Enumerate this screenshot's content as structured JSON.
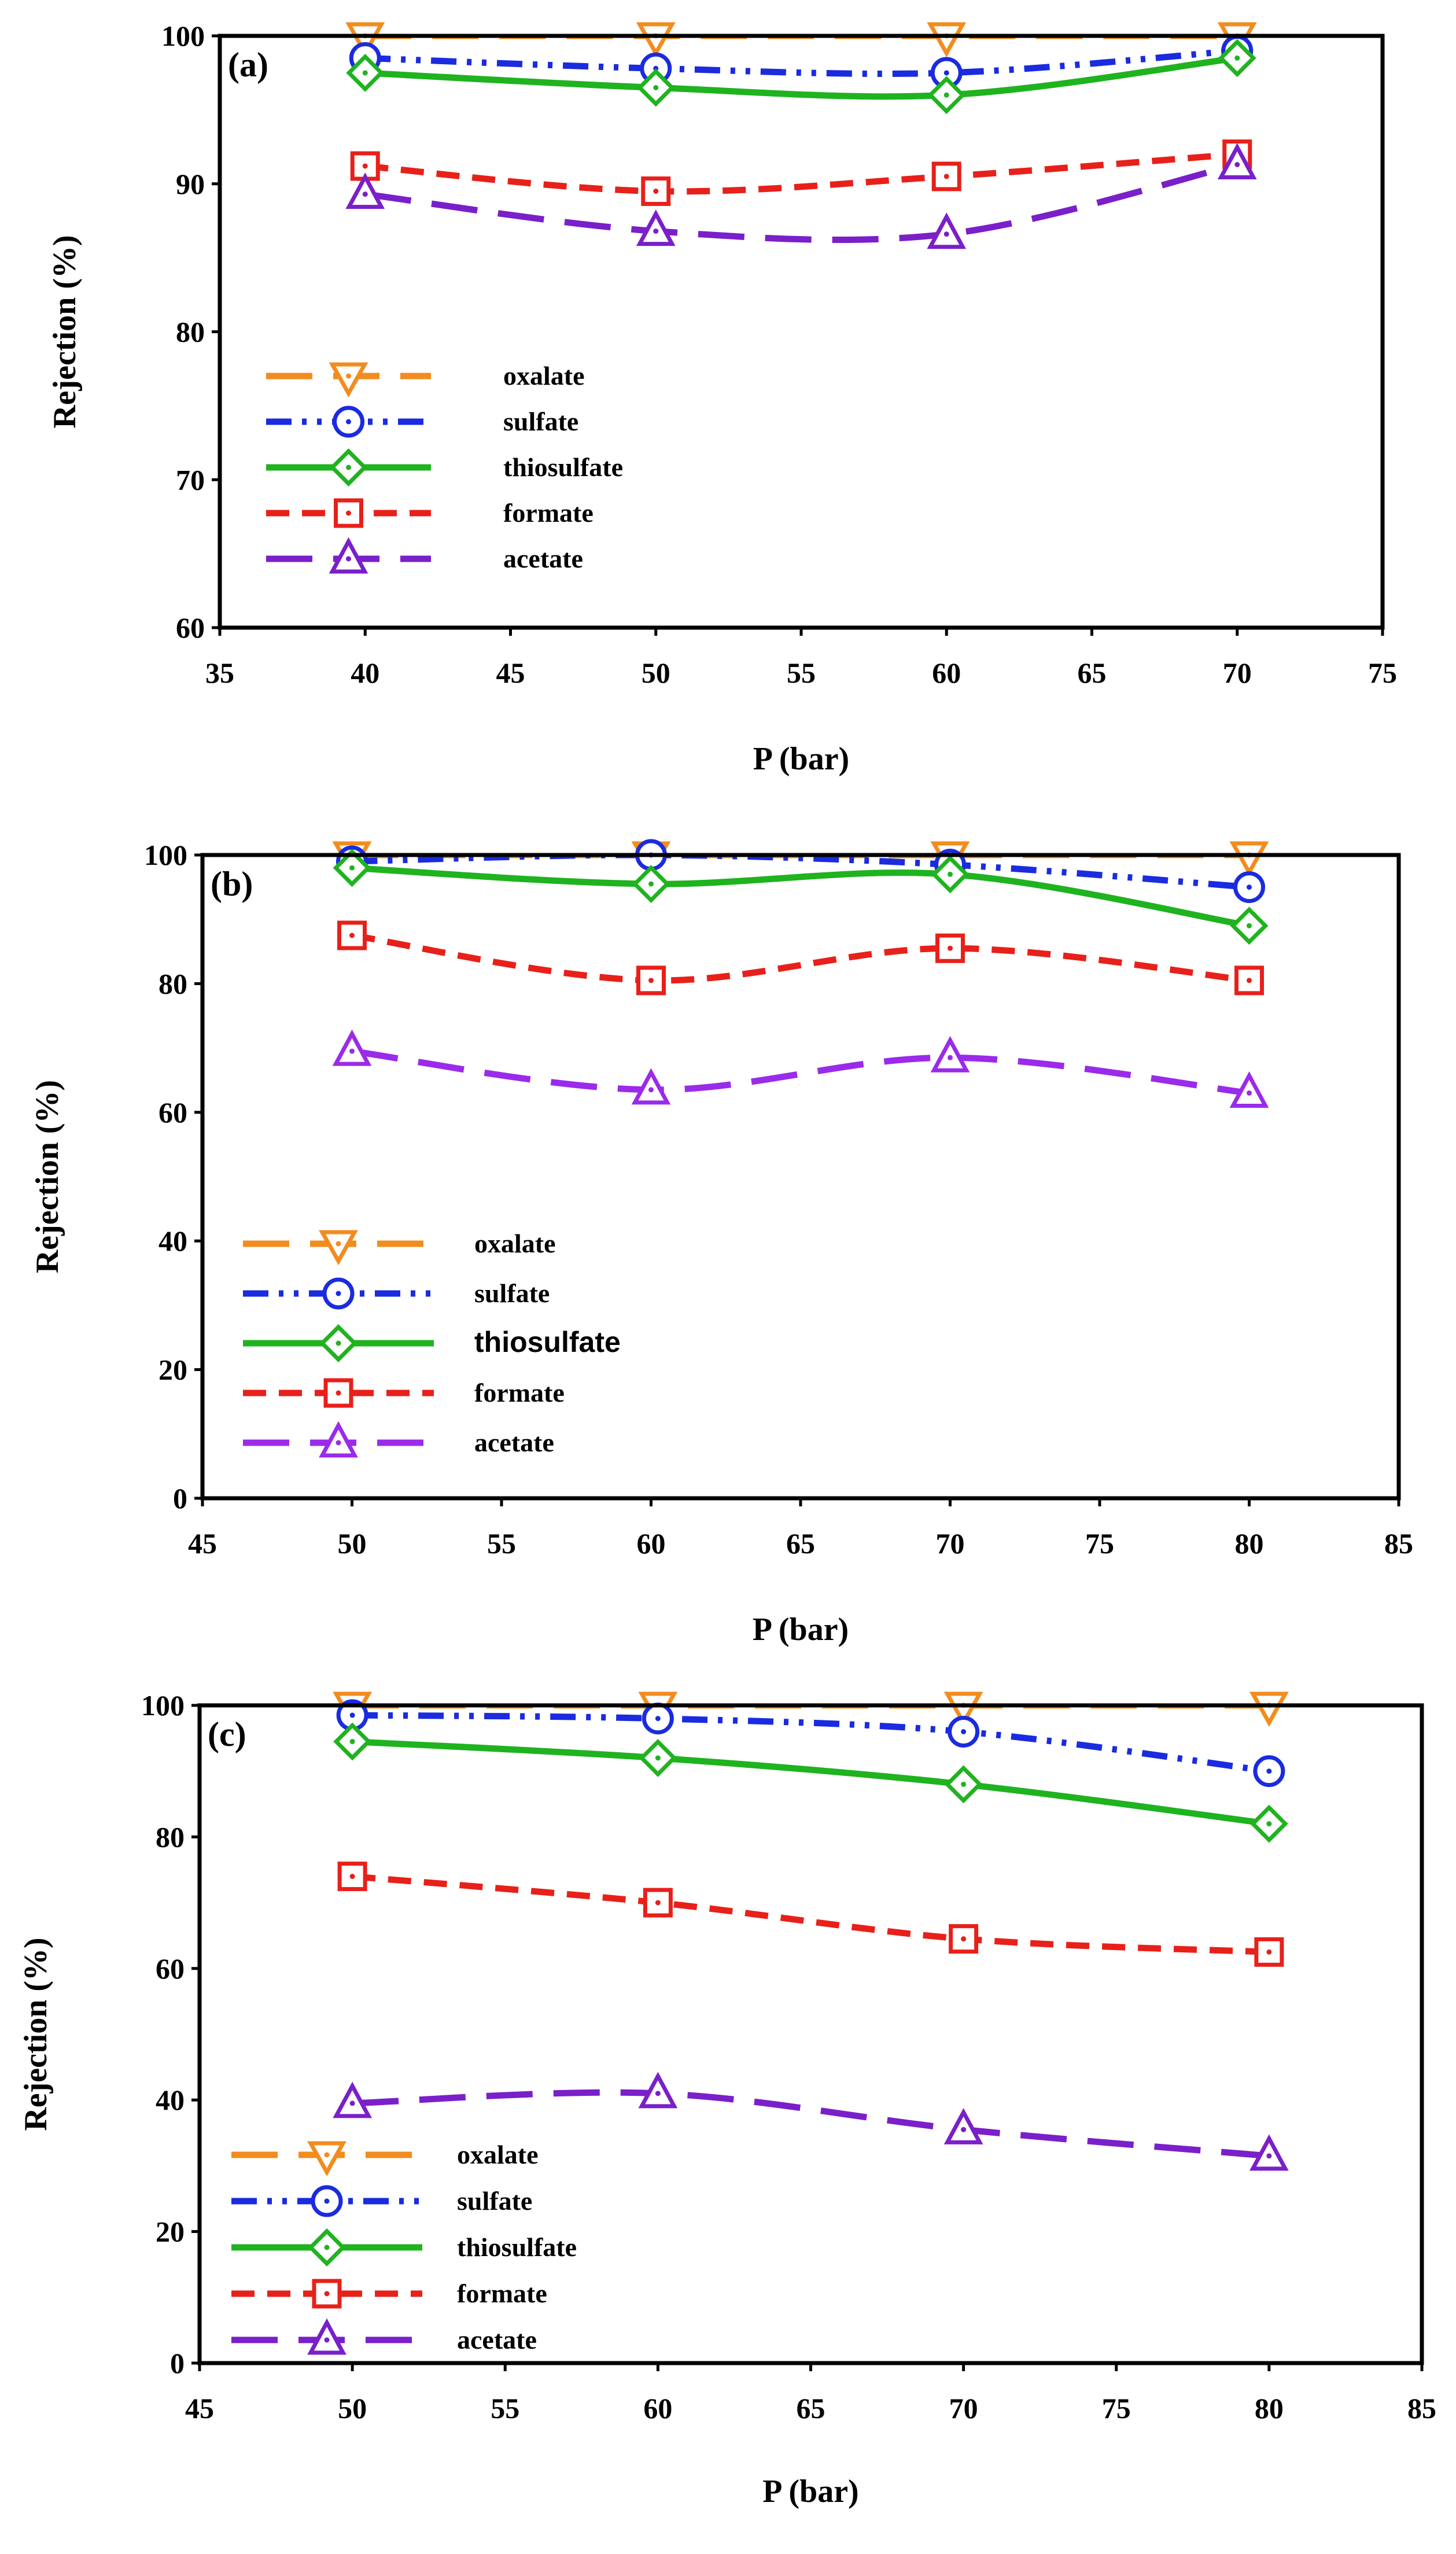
{
  "chart_data": [
    {
      "type": "line",
      "panel_label": "(a)",
      "xlabel": "P (bar)",
      "ylabel": "Rejection (%)",
      "xlim": [
        35,
        75
      ],
      "ylim": [
        60,
        100
      ],
      "xticks": [
        35,
        40,
        45,
        50,
        55,
        60,
        65,
        70,
        75
      ],
      "yticks": [
        60,
        70,
        80,
        90,
        100
      ],
      "legend_position": "center-left",
      "series": [
        {
          "name": "oxalate",
          "color": "#F28C1E",
          "marker": "triangle-down",
          "dash": "long-dash",
          "x": [
            40,
            50,
            60,
            70
          ],
          "y": [
            100,
            100,
            100,
            100
          ]
        },
        {
          "name": "sulfate",
          "color": "#1A2BE0",
          "marker": "circle",
          "dash": "dash-dot-dot",
          "x": [
            40,
            50,
            60,
            70
          ],
          "y": [
            98.5,
            97.8,
            97.5,
            99
          ]
        },
        {
          "name": "thiosulfate",
          "color": "#1FB31F",
          "marker": "diamond",
          "dash": "solid",
          "x": [
            40,
            50,
            60,
            70
          ],
          "y": [
            97.5,
            96.5,
            96,
            98.5
          ]
        },
        {
          "name": "formate",
          "color": "#E8201A",
          "marker": "square",
          "dash": "dash",
          "x": [
            40,
            50,
            60,
            70
          ],
          "y": [
            91.2,
            89.5,
            90.5,
            92
          ]
        },
        {
          "name": "acetate",
          "color": "#7A1FC9",
          "marker": "triangle-up",
          "dash": "long-dash",
          "x": [
            40,
            50,
            60,
            70
          ],
          "y": [
            89.3,
            86.8,
            86.6,
            91.3
          ]
        }
      ]
    },
    {
      "type": "line",
      "panel_label": "(b)",
      "xlabel": "P (bar)",
      "ylabel": "Rejection (%)",
      "xlim": [
        45,
        85
      ],
      "ylim": [
        0,
        100
      ],
      "xticks": [
        45,
        50,
        55,
        60,
        65,
        70,
        75,
        80,
        85
      ],
      "yticks": [
        0,
        20,
        40,
        60,
        80,
        100
      ],
      "legend_position": "bottom-left",
      "series": [
        {
          "name": "oxalate",
          "color": "#F28C1E",
          "marker": "triangle-down",
          "dash": "long-dash",
          "x": [
            50,
            60,
            70,
            80
          ],
          "y": [
            100,
            100,
            100,
            100
          ]
        },
        {
          "name": "sulfate",
          "color": "#1A2BE0",
          "marker": "circle",
          "dash": "dash-dot-dot",
          "x": [
            50,
            60,
            70,
            80
          ],
          "y": [
            99,
            100,
            98.5,
            95
          ]
        },
        {
          "name": "thiosulfate",
          "color": "#1FB31F",
          "marker": "diamond",
          "dash": "solid",
          "x": [
            50,
            60,
            70,
            80
          ],
          "y": [
            98,
            95.5,
            97,
            89
          ]
        },
        {
          "name": "formate",
          "color": "#E8201A",
          "marker": "square",
          "dash": "dash",
          "x": [
            50,
            60,
            70,
            80
          ],
          "y": [
            87.5,
            80.5,
            85.5,
            80.5
          ]
        },
        {
          "name": "acetate",
          "color": "#9A2BEA",
          "marker": "triangle-up",
          "dash": "long-dash",
          "x": [
            50,
            60,
            70,
            80
          ],
          "y": [
            69.5,
            63.5,
            68.5,
            63
          ]
        }
      ]
    },
    {
      "type": "line",
      "panel_label": "(c)",
      "xlabel": "P (bar)",
      "ylabel": "Rejection (%)",
      "xlim": [
        45,
        85
      ],
      "ylim": [
        0,
        100
      ],
      "xticks": [
        45,
        50,
        55,
        60,
        65,
        70,
        75,
        80,
        85
      ],
      "yticks": [
        0,
        20,
        40,
        60,
        80,
        100
      ],
      "legend_position": "bottom-left",
      "series": [
        {
          "name": "oxalate",
          "color": "#F28C1E",
          "marker": "triangle-down",
          "dash": "long-dash",
          "x": [
            50,
            60,
            70,
            80
          ],
          "y": [
            100,
            100,
            100,
            100
          ]
        },
        {
          "name": "sulfate",
          "color": "#1A2BE0",
          "marker": "circle",
          "dash": "dash-dot-dot",
          "x": [
            50,
            60,
            70,
            80
          ],
          "y": [
            98.5,
            98,
            96,
            90
          ]
        },
        {
          "name": "thiosulfate",
          "color": "#1FB31F",
          "marker": "diamond",
          "dash": "solid",
          "x": [
            50,
            60,
            70,
            80
          ],
          "y": [
            94.5,
            92,
            88,
            82
          ]
        },
        {
          "name": "formate",
          "color": "#E8201A",
          "marker": "square",
          "dash": "dash",
          "x": [
            50,
            60,
            70,
            80
          ],
          "y": [
            74,
            70,
            64.5,
            62.5
          ]
        },
        {
          "name": "acetate",
          "color": "#7A1FC9",
          "marker": "triangle-up",
          "dash": "long-dash",
          "x": [
            50,
            60,
            70,
            80
          ],
          "y": [
            39.5,
            41,
            35.5,
            31.5
          ]
        }
      ]
    }
  ]
}
